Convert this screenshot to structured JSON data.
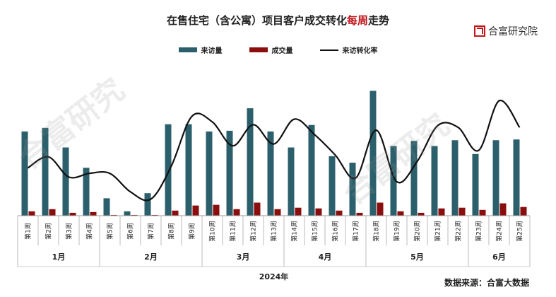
{
  "title_main": "在售住宅（含公寓）项目客户成交转化",
  "title_highlight": "每周",
  "title_tail": "走势",
  "brand": "合富研究院",
  "source": "数据来源：合富大数据",
  "watermark": "合富研究",
  "colors": {
    "visits": "#2b5f6b",
    "deals": "#8b0e0e",
    "rate": "#111111",
    "highlight": "#c0151b"
  },
  "chart_data": {
    "type": "bar",
    "legend": [
      "来访量",
      "成交量",
      "来访转化率"
    ],
    "legend_position": "top-center",
    "grid": false,
    "categories": [
      "第1周",
      "第2周",
      "第3周",
      "第4周",
      "第5周",
      "第6周",
      "第7周",
      "第8周",
      "第9周",
      "第10周",
      "第11周",
      "第12周",
      "第13周",
      "第14周",
      "第15周",
      "第16周",
      "第17周",
      "第18周",
      "第19周",
      "第20周",
      "第21周",
      "第22周",
      "第23周",
      "第24周",
      "第25周"
    ],
    "months": [
      {
        "label": "1月",
        "weeks": [
          1,
          4
        ]
      },
      {
        "label": "2月",
        "weeks": [
          5,
          9
        ]
      },
      {
        "label": "3月",
        "weeks": [
          10,
          13
        ]
      },
      {
        "label": "4月",
        "weeks": [
          14,
          17
        ]
      },
      {
        "label": "5月",
        "weeks": [
          18,
          22
        ]
      },
      {
        "label": "6月",
        "weeks": [
          23,
          25
        ]
      }
    ],
    "year_label": "2024年",
    "series": [
      {
        "name": "来访量",
        "kind": "bar",
        "values": [
          116,
          121,
          94,
          66,
          24,
          6,
          31,
          126,
          126,
          116,
          117,
          148,
          116,
          94,
          125,
          82,
          73,
          172,
          96,
          103,
          96,
          104,
          85,
          104,
          105
        ]
      },
      {
        "name": "成交量",
        "kind": "bar",
        "values": [
          6,
          9,
          4,
          5,
          1,
          1,
          1,
          7,
          14,
          15,
          9,
          18,
          9,
          11,
          10,
          7,
          4,
          18,
          6,
          4,
          10,
          11,
          8,
          17,
          12
        ]
      },
      {
        "name": "来访转化率",
        "kind": "line",
        "values": [
          5.2,
          6.4,
          4.2,
          4.6,
          4.6,
          2.6,
          1.8,
          5.4,
          10.8,
          10.2,
          7.6,
          9.9,
          7.8,
          10.5,
          8.8,
          6.6,
          4.1,
          9.3,
          3.7,
          5.9,
          9.8,
          9.6,
          7.1,
          12.5,
          9.6
        ]
      }
    ],
    "ylim_bars": [
      0,
      190
    ],
    "ylim_rate": [
      0,
      15
    ]
  }
}
